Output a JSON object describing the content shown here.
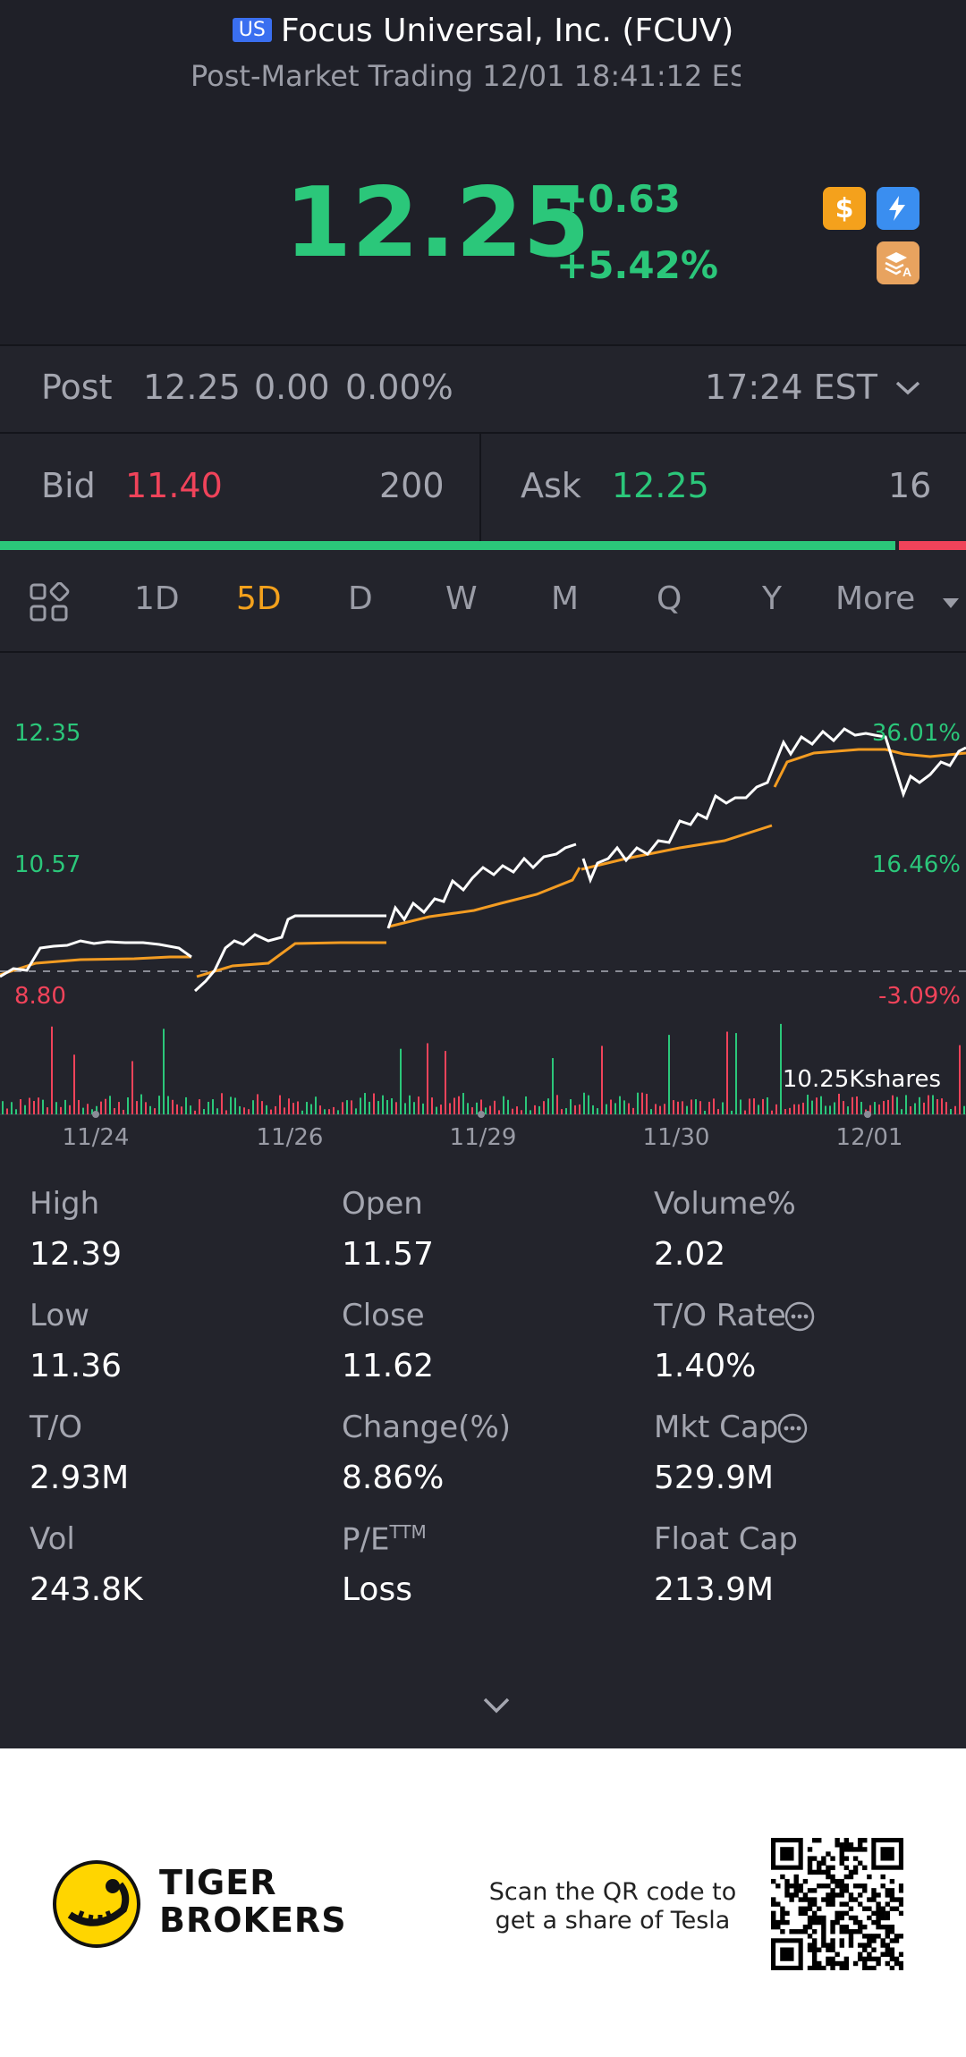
{
  "header": {
    "market_badge": "US",
    "title": "Focus Universal, Inc. (FCUV)",
    "subtitle": "Post-Market Trading 12/01 18:41:12 ES",
    "price": "12.25",
    "change": "+0.63",
    "change_pct": "+5.42%",
    "badges": {
      "dollar": "$",
      "flash": "⚡"
    },
    "colors": {
      "up": "#2bc77a",
      "down": "#f0435a",
      "gold": "#f4a11c"
    }
  },
  "post_row": {
    "label": "Post",
    "price": "12.25",
    "change": "0.00",
    "change_pct": "0.00%",
    "time": "17:24 EST"
  },
  "quote": {
    "bid_label": "Bid",
    "bid_price": "11.40",
    "bid_size": "200",
    "ask_label": "Ask",
    "ask_price": "12.25",
    "ask_size": "16",
    "bid_share": 0.927
  },
  "tabs": {
    "items": [
      "1D",
      "5D",
      "D",
      "W",
      "M",
      "Q",
      "Y",
      "More"
    ],
    "active": "5D"
  },
  "chart": {
    "y_left": [
      "12.35",
      "10.57",
      "8.80"
    ],
    "y_right": [
      "36.01%",
      "16.46%",
      "-3.09%"
    ],
    "volume_label": "10.25Kshares",
    "x_labels": [
      "11/24",
      "11/26",
      "11/29",
      "11/30",
      "12/01"
    ]
  },
  "stats": [
    {
      "label": "High",
      "value": "12.39"
    },
    {
      "label": "Open",
      "value": "11.57"
    },
    {
      "label": "Volume%",
      "value": "2.02"
    },
    {
      "label": "Low",
      "value": "11.36"
    },
    {
      "label": "Close",
      "value": "11.62"
    },
    {
      "label": "T/O Rate",
      "value": "1.40%"
    },
    {
      "label": "T/O",
      "value": "2.93M"
    },
    {
      "label": "Change(%)",
      "value": "8.86%"
    },
    {
      "label": "Mkt Cap",
      "value": "529.9M"
    },
    {
      "label": "Vol",
      "value": "243.8K"
    },
    {
      "label": "P/E",
      "label_sup": "TTM",
      "value": "Loss"
    },
    {
      "label": "Float Cap",
      "value": "213.9M"
    }
  ],
  "footer": {
    "brand_line1": "TIGER",
    "brand_line2": "BROKERS",
    "scan_line1": "Scan the QR code to",
    "scan_line2": "get a share of Tesla"
  }
}
